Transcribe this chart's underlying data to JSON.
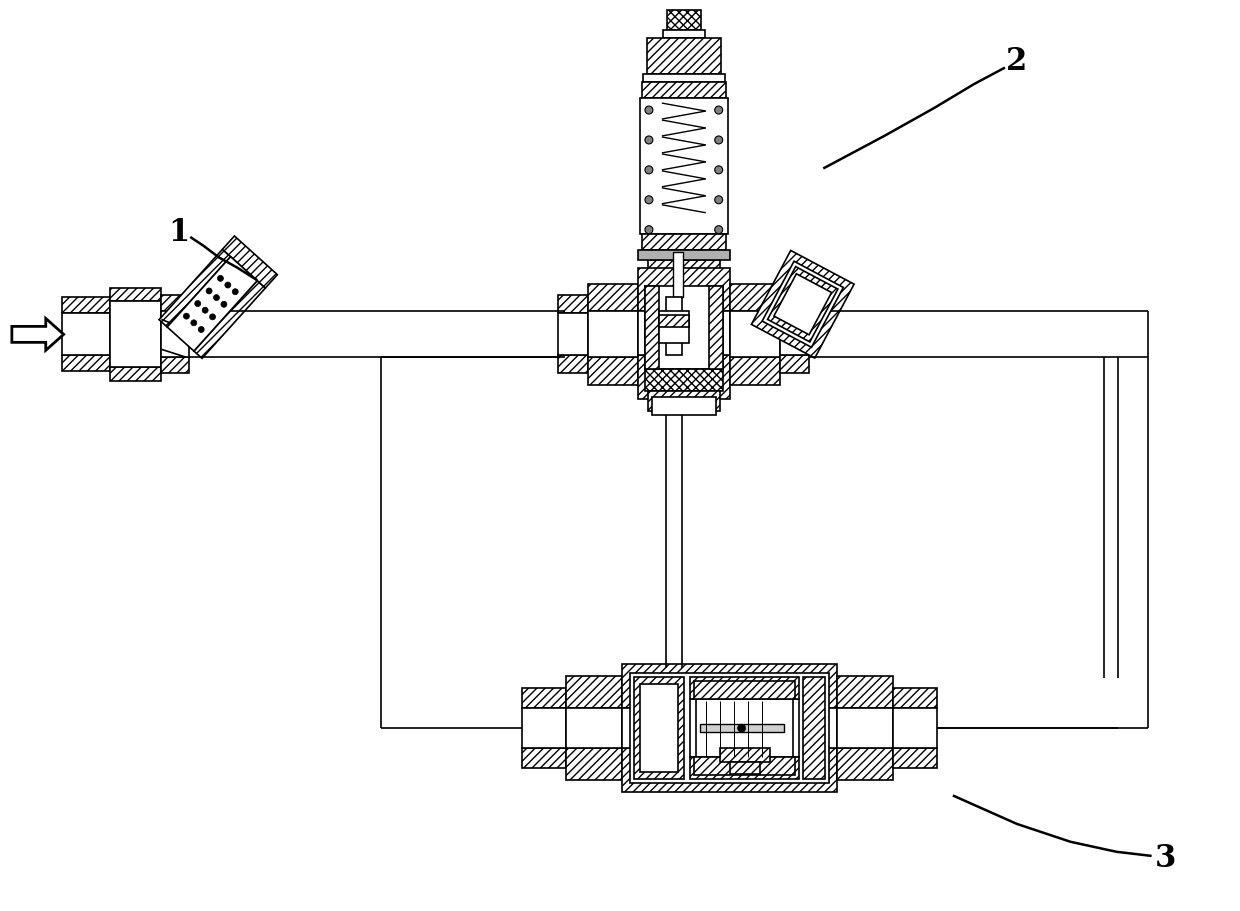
{
  "background_color": "#ffffff",
  "line_color": "#000000",
  "label_1": "1",
  "label_2": "2",
  "label_3": "3",
  "figsize": [
    12.4,
    9.12
  ],
  "dpi": 100
}
